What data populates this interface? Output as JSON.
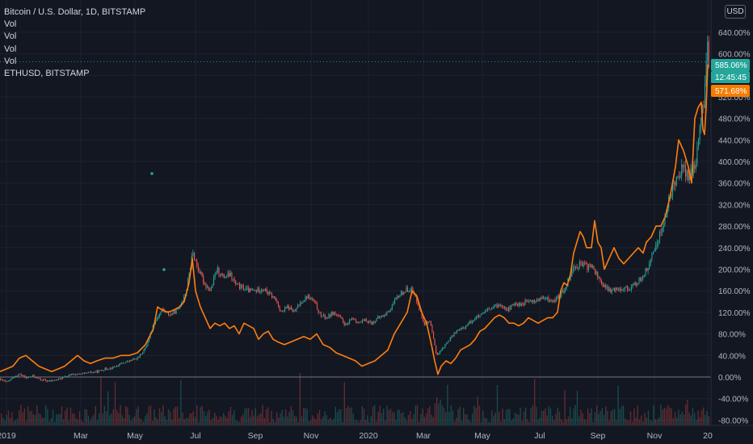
{
  "legend": {
    "title": "Bitcoin / U.S. Dollar, 1D, BITSTAMP",
    "vol1": "Vol",
    "vol2": "Vol",
    "vol3": "Vol",
    "vol4": "Vol",
    "compare": "ETHUSD, BITSTAMP"
  },
  "currency_button": "USD",
  "colors": {
    "background": "#131722",
    "grid": "#1e222d",
    "axis_text": "#b2b5be",
    "btc_candle_up": "#26a69a",
    "btc_candle_down": "#ef5350",
    "eth_line": "#ff7f0e",
    "tag_btc": "#26a69a",
    "tag_eth": "#f57c00"
  },
  "price_tags": {
    "btc_change": "585.06%",
    "countdown": "12:45:45",
    "eth_change": "571.68%"
  },
  "chart_data": {
    "type": "line",
    "x_axis_labels": [
      "2019",
      "Mar",
      "May",
      "Jul",
      "Sep",
      "Nov",
      "2020",
      "Mar",
      "May",
      "Jul",
      "Sep",
      "Nov",
      "20"
    ],
    "y_axis_labels": [
      "640.00%",
      "600.00%",
      "560.00%",
      "520.00%",
      "480.00%",
      "440.00%",
      "400.00%",
      "360.00%",
      "320.00%",
      "280.00%",
      "240.00%",
      "200.00%",
      "160.00%",
      "120.00%",
      "80.00%",
      "40.00%",
      "0.00%",
      "-40.00%",
      "-80.00%"
    ],
    "ylim": [
      -80,
      640
    ],
    "series": [
      {
        "name": "Bitcoin / U.S. Dollar",
        "style": "candles",
        "points": [
          [
            0,
            -5
          ],
          [
            8,
            -10
          ],
          [
            16,
            0
          ],
          [
            24,
            5
          ],
          [
            32,
            -2
          ],
          [
            40,
            2
          ],
          [
            50,
            -5
          ],
          [
            60,
            -8
          ],
          [
            70,
            -5
          ],
          [
            80,
            0
          ],
          [
            90,
            5
          ],
          [
            100,
            5
          ],
          [
            110,
            8
          ],
          [
            120,
            10
          ],
          [
            130,
            15
          ],
          [
            140,
            18
          ],
          [
            150,
            25
          ],
          [
            160,
            30
          ],
          [
            170,
            35
          ],
          [
            180,
            55
          ],
          [
            190,
            100
          ],
          [
            200,
            125
          ],
          [
            210,
            115
          ],
          [
            220,
            125
          ],
          [
            230,
            160
          ],
          [
            238,
            230
          ],
          [
            245,
            200
          ],
          [
            252,
            175
          ],
          [
            260,
            160
          ],
          [
            268,
            200
          ],
          [
            276,
            185
          ],
          [
            284,
            190
          ],
          [
            292,
            170
          ],
          [
            300,
            165
          ],
          [
            308,
            160
          ],
          [
            316,
            160
          ],
          [
            324,
            165
          ],
          [
            332,
            155
          ],
          [
            340,
            145
          ],
          [
            348,
            120
          ],
          [
            356,
            130
          ],
          [
            364,
            120
          ],
          [
            372,
            140
          ],
          [
            380,
            150
          ],
          [
            388,
            140
          ],
          [
            396,
            115
          ],
          [
            404,
            110
          ],
          [
            412,
            120
          ],
          [
            420,
            110
          ],
          [
            428,
            95
          ],
          [
            436,
            110
          ],
          [
            444,
            100
          ],
          [
            452,
            105
          ],
          [
            460,
            100
          ],
          [
            468,
            110
          ],
          [
            476,
            115
          ],
          [
            484,
            130
          ],
          [
            492,
            150
          ],
          [
            500,
            160
          ],
          [
            508,
            165
          ],
          [
            516,
            140
          ],
          [
            524,
            100
          ],
          [
            532,
            100
          ],
          [
            540,
            40
          ],
          [
            548,
            55
          ],
          [
            556,
            70
          ],
          [
            564,
            85
          ],
          [
            572,
            90
          ],
          [
            580,
            100
          ],
          [
            588,
            110
          ],
          [
            596,
            115
          ],
          [
            604,
            125
          ],
          [
            612,
            130
          ],
          [
            620,
            135
          ],
          [
            628,
            125
          ],
          [
            636,
            135
          ],
          [
            644,
            135
          ],
          [
            652,
            140
          ],
          [
            660,
            140
          ],
          [
            668,
            145
          ],
          [
            676,
            145
          ],
          [
            684,
            140
          ],
          [
            692,
            150
          ],
          [
            700,
            170
          ],
          [
            708,
            200
          ],
          [
            716,
            210
          ],
          [
            724,
            205
          ],
          [
            732,
            205
          ],
          [
            740,
            185
          ],
          [
            748,
            165
          ],
          [
            756,
            160
          ],
          [
            764,
            165
          ],
          [
            772,
            165
          ],
          [
            780,
            165
          ],
          [
            788,
            175
          ],
          [
            796,
            190
          ],
          [
            804,
            210
          ],
          [
            812,
            250
          ],
          [
            820,
            280
          ],
          [
            828,
            330
          ],
          [
            836,
            370
          ],
          [
            844,
            390
          ],
          [
            852,
            370
          ],
          [
            860,
            390
          ],
          [
            866,
            470
          ],
          [
            870,
            500
          ],
          [
            872,
            540
          ],
          [
            875,
            620
          ],
          [
            877,
            585
          ]
        ]
      },
      {
        "name": "ETHUSD, BITSTAMP",
        "style": "line",
        "points": [
          [
            0,
            10
          ],
          [
            8,
            15
          ],
          [
            16,
            20
          ],
          [
            24,
            35
          ],
          [
            32,
            40
          ],
          [
            40,
            30
          ],
          [
            48,
            20
          ],
          [
            56,
            15
          ],
          [
            64,
            10
          ],
          [
            72,
            15
          ],
          [
            80,
            20
          ],
          [
            88,
            30
          ],
          [
            96,
            40
          ],
          [
            104,
            30
          ],
          [
            112,
            25
          ],
          [
            120,
            30
          ],
          [
            130,
            35
          ],
          [
            140,
            35
          ],
          [
            150,
            40
          ],
          [
            160,
            40
          ],
          [
            170,
            45
          ],
          [
            180,
            60
          ],
          [
            190,
            90
          ],
          [
            195,
            130
          ],
          [
            200,
            125
          ],
          [
            208,
            120
          ],
          [
            216,
            125
          ],
          [
            222,
            130
          ],
          [
            228,
            140
          ],
          [
            234,
            175
          ],
          [
            238,
            220
          ],
          [
            242,
            160
          ],
          [
            248,
            130
          ],
          [
            254,
            110
          ],
          [
            260,
            90
          ],
          [
            266,
            100
          ],
          [
            272,
            95
          ],
          [
            278,
            100
          ],
          [
            284,
            90
          ],
          [
            290,
            95
          ],
          [
            296,
            80
          ],
          [
            302,
            100
          ],
          [
            308,
            95
          ],
          [
            314,
            90
          ],
          [
            320,
            70
          ],
          [
            326,
            80
          ],
          [
            332,
            85
          ],
          [
            338,
            70
          ],
          [
            344,
            65
          ],
          [
            352,
            60
          ],
          [
            360,
            65
          ],
          [
            368,
            70
          ],
          [
            376,
            75
          ],
          [
            384,
            70
          ],
          [
            392,
            80
          ],
          [
            400,
            60
          ],
          [
            408,
            55
          ],
          [
            416,
            45
          ],
          [
            424,
            40
          ],
          [
            432,
            35
          ],
          [
            440,
            30
          ],
          [
            448,
            20
          ],
          [
            456,
            25
          ],
          [
            464,
            30
          ],
          [
            472,
            40
          ],
          [
            480,
            50
          ],
          [
            488,
            80
          ],
          [
            496,
            100
          ],
          [
            504,
            120
          ],
          [
            510,
            160
          ],
          [
            516,
            150
          ],
          [
            522,
            120
          ],
          [
            528,
            100
          ],
          [
            534,
            60
          ],
          [
            538,
            30
          ],
          [
            542,
            5
          ],
          [
            546,
            20
          ],
          [
            552,
            30
          ],
          [
            558,
            25
          ],
          [
            564,
            35
          ],
          [
            570,
            50
          ],
          [
            576,
            55
          ],
          [
            582,
            60
          ],
          [
            588,
            70
          ],
          [
            594,
            85
          ],
          [
            600,
            90
          ],
          [
            606,
            100
          ],
          [
            612,
            110
          ],
          [
            618,
            115
          ],
          [
            624,
            110
          ],
          [
            630,
            100
          ],
          [
            636,
            100
          ],
          [
            642,
            95
          ],
          [
            648,
            100
          ],
          [
            654,
            110
          ],
          [
            660,
            105
          ],
          [
            666,
            100
          ],
          [
            672,
            105
          ],
          [
            678,
            110
          ],
          [
            684,
            110
          ],
          [
            690,
            120
          ],
          [
            694,
            160
          ],
          [
            698,
            175
          ],
          [
            702,
            170
          ],
          [
            706,
            190
          ],
          [
            710,
            230
          ],
          [
            714,
            250
          ],
          [
            718,
            270
          ],
          [
            722,
            260
          ],
          [
            726,
            240
          ],
          [
            732,
            240
          ],
          [
            736,
            290
          ],
          [
            740,
            250
          ],
          [
            744,
            240
          ],
          [
            748,
            200
          ],
          [
            754,
            220
          ],
          [
            760,
            240
          ],
          [
            766,
            220
          ],
          [
            772,
            210
          ],
          [
            778,
            220
          ],
          [
            784,
            230
          ],
          [
            790,
            240
          ],
          [
            796,
            230
          ],
          [
            800,
            250
          ],
          [
            806,
            260
          ],
          [
            812,
            280
          ],
          [
            818,
            280
          ],
          [
            824,
            300
          ],
          [
            830,
            340
          ],
          [
            836,
            390
          ],
          [
            840,
            440
          ],
          [
            846,
            420
          ],
          [
            852,
            390
          ],
          [
            856,
            360
          ],
          [
            860,
            480
          ],
          [
            864,
            500
          ],
          [
            868,
            510
          ],
          [
            870,
            460
          ],
          [
            872,
            450
          ],
          [
            874,
            500
          ],
          [
            876,
            580
          ]
        ]
      }
    ],
    "grid": true,
    "zero_line": true
  }
}
